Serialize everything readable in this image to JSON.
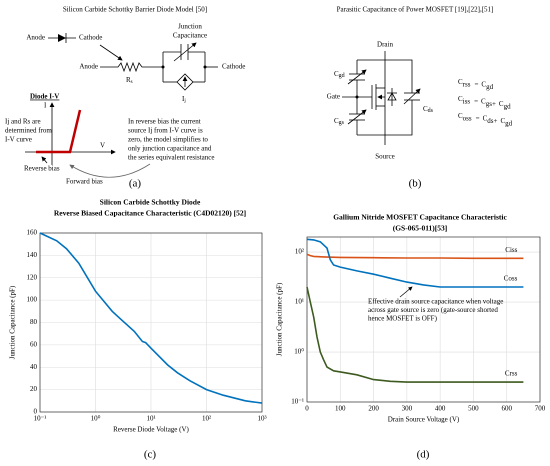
{
  "panel_a": {
    "title": "Silicon Carbide Schottky Barrier Diode Model [50]",
    "caption": "(a)",
    "labels": {
      "anode_top": "Anode",
      "cathode_top": "Cathode",
      "junction_cap": [
        "Junction",
        "Capacitance"
      ],
      "anode": "Anode",
      "rs": {
        "base": "R",
        "sub": "s"
      },
      "cathode": "Cathode",
      "ij": {
        "base": "I",
        "sub": "j"
      },
      "iv_title": "Diode I-V",
      "i_axis": "I",
      "v_axis": "V",
      "reverse": "Reverse bias",
      "forward": "Forward bias"
    },
    "note_left": [
      "Ij and Rs are",
      "determined from",
      "I-V curve"
    ],
    "note_right": [
      "In reverse bias the current",
      "source Ij from I-V curve is",
      "zero, the model simplifies to",
      "only junction capacitance and",
      "the series equivalent resistance"
    ]
  },
  "panel_b": {
    "title": "Parasitic Capacitance of Power MOSFET [19],[22],[51]",
    "caption": "(b)",
    "labels": {
      "drain": "Drain",
      "gate": "Gate",
      "source": "Source",
      "cgd": {
        "base": "C",
        "sub": "gd"
      },
      "cgs": {
        "base": "C",
        "sub": "gs"
      },
      "cds": {
        "base": "C",
        "sub": "ds"
      }
    },
    "equations": [
      {
        "lhs": {
          "base": "C",
          "sub": "rss"
        },
        "op": "=",
        "rhs": [
          {
            "base": "C",
            "sub": "gd"
          }
        ]
      },
      {
        "lhs": {
          "base": "C",
          "sub": "iss"
        },
        "op": "=",
        "join": "+",
        "rhs": [
          {
            "base": "C",
            "sub": "gs"
          },
          {
            "base": "C",
            "sub": "gd"
          }
        ]
      },
      {
        "lhs": {
          "base": "C",
          "sub": "oss"
        },
        "op": "=",
        "join": "+",
        "rhs": [
          {
            "base": "C",
            "sub": "ds"
          },
          {
            "base": "C",
            "sub": "gd"
          }
        ]
      }
    ]
  },
  "chart_data": [
    {
      "type": "line",
      "title": "Silicon Carbide Schottky Diode",
      "subtitle": "Reverse Biased Capacitance Characteristic (C4D02120)  [52]",
      "x_label": "Reverse Diode Voltage (V)",
      "y_label": "Junction Capacitance (pF)",
      "caption": "(c)",
      "xscale": "log",
      "xlim": [
        0.1,
        1000
      ],
      "xticks": [
        {
          "value": 0.1,
          "label": "10⁻¹"
        },
        {
          "value": 1,
          "label": "10⁰"
        },
        {
          "value": 10,
          "label": "10¹"
        },
        {
          "value": 100,
          "label": "10²"
        },
        {
          "value": 1000,
          "label": "10³"
        }
      ],
      "ylim": [
        0,
        160
      ],
      "yticks": [
        0,
        20,
        40,
        60,
        80,
        100,
        120,
        140,
        160
      ],
      "grid": true,
      "x": [
        0.1,
        0.2,
        0.3,
        0.5,
        1,
        2,
        3,
        5,
        7,
        8,
        10,
        20,
        30,
        50,
        100,
        200,
        500,
        1000
      ],
      "series": [
        {
          "color": "#0072bd",
          "values": [
            160,
            153,
            146,
            133,
            108,
            90,
            82,
            72,
            63,
            62,
            57,
            42,
            35,
            28,
            20,
            15,
            10,
            8
          ]
        }
      ]
    },
    {
      "type": "line",
      "title": "Gallium Nitride MOSFET Capacitance Characteristic",
      "subtitle": "(GS-065-011)[53]",
      "x_label": "Drain Source Voltage (V)",
      "y_label": "Junction Capacitance (pF)",
      "caption": "(d)",
      "yscale": "log",
      "xlim": [
        0,
        700
      ],
      "xticks": [
        0,
        100,
        200,
        300,
        400,
        500,
        600,
        700
      ],
      "ylim": [
        0.1,
        200
      ],
      "yticks": [
        {
          "value": 0.1,
          "label": "10⁻¹"
        },
        {
          "value": 1,
          "label": "10⁰"
        },
        {
          "value": 10,
          "label": "10¹"
        },
        {
          "value": 100,
          "label": "10²"
        }
      ],
      "grid": true,
      "annotation": [
        "Effective drain source capacitance when voltage",
        "across gate source is zero (gate-source shorted",
        "hence MOSFET is OFF)"
      ],
      "series": [
        {
          "name": "Ciss",
          "color": "#d95319",
          "x": [
            0,
            10,
            20,
            50,
            100,
            200,
            300,
            400,
            500,
            600,
            650
          ],
          "values": [
            90,
            85,
            82,
            80,
            78,
            77,
            76,
            76,
            75,
            75,
            75
          ]
        },
        {
          "name": "Coss",
          "color": "#0072bd",
          "x": [
            0,
            20,
            40,
            60,
            70,
            80,
            100,
            150,
            200,
            250,
            300,
            350,
            400,
            450,
            500,
            650
          ],
          "values": [
            180,
            175,
            160,
            120,
            70,
            55,
            50,
            42,
            36,
            30,
            25,
            22,
            20,
            20,
            20,
            20
          ]
        },
        {
          "name": "Crss",
          "color": "#3d5a1f",
          "x": [
            0,
            10,
            20,
            30,
            40,
            50,
            60,
            80,
            100,
            150,
            200,
            250,
            300,
            650
          ],
          "values": [
            20,
            10,
            5,
            2,
            1,
            0.7,
            0.5,
            0.42,
            0.4,
            0.35,
            0.28,
            0.26,
            0.25,
            0.25
          ]
        }
      ]
    }
  ]
}
